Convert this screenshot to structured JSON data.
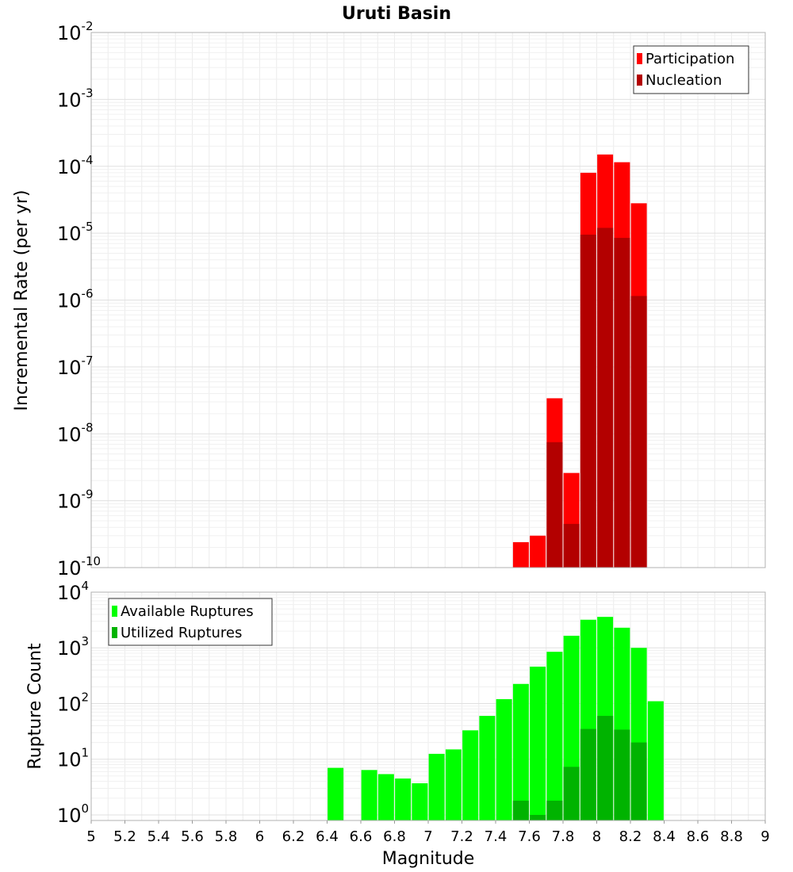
{
  "chart_data": {
    "title": "Uruti Basin",
    "xlabel": "Magnitude",
    "xlim": [
      5,
      9
    ],
    "x_ticks": [
      "5",
      "5.2",
      "5.4",
      "5.6",
      "5.8",
      "6",
      "6.2",
      "6.4",
      "6.6",
      "6.8",
      "7",
      "7.2",
      "7.4",
      "7.6",
      "7.8",
      "8",
      "8.2",
      "8.4",
      "8.6",
      "8.8",
      "9"
    ],
    "grid": true,
    "panels": [
      {
        "type": "bar",
        "scale": "log",
        "ylabel": "Incremental Rate (per yr)",
        "ylim_exp": [
          -10,
          -2
        ],
        "y_tick_base": "10",
        "y_tick_exponents": [
          "-10",
          "-9",
          "-8",
          "-7",
          "-6",
          "-5",
          "-4",
          "-3",
          "-2"
        ],
        "legend_position": "top-right",
        "series": [
          {
            "name": "Participation",
            "color": "#ff0000",
            "x": [
              7.55,
              7.65,
              7.75,
              7.85,
              7.95,
              8.05,
              8.15,
              8.25
            ],
            "values": [
              2.4e-10,
              3e-10,
              3.4e-08,
              2.6e-09,
              8e-05,
              0.00015,
              0.000115,
              2.8e-05
            ]
          },
          {
            "name": "Nucleation",
            "color": "#b30000",
            "x": [
              7.75,
              7.85,
              7.95,
              8.05,
              8.15,
              8.25
            ],
            "values": [
              7.5e-09,
              4.5e-10,
              9.5e-06,
              1.2e-05,
              8.5e-06,
              1.15e-06
            ]
          }
        ]
      },
      {
        "type": "bar",
        "scale": "log",
        "ylabel": "Rupture Count",
        "ylim_exp": [
          -0.1,
          4
        ],
        "y_tick_base": "10",
        "y_tick_exponents": [
          "0",
          "1",
          "2",
          "3",
          "4"
        ],
        "legend_position": "top-left",
        "series": [
          {
            "name": "Available Ruptures",
            "color": "#00ff00",
            "x": [
              6.45,
              6.65,
              6.75,
              6.85,
              6.95,
              7.05,
              7.15,
              7.25,
              7.35,
              7.45,
              7.55,
              7.65,
              7.75,
              7.85,
              7.95,
              8.05,
              8.15,
              8.25,
              8.35
            ],
            "values": [
              7,
              6.4,
              5.4,
              4.5,
              3.7,
              12.5,
              15,
              33,
              60,
              120,
              225,
              460,
              850,
              1650,
              3200,
              3600,
              2300,
              1000,
              110
            ]
          },
          {
            "name": "Utilized Ruptures",
            "color": "#00b300",
            "x": [
              7.55,
              7.65,
              7.75,
              7.85,
              7.95,
              8.05,
              8.15,
              8.25
            ],
            "values": [
              1.8,
              1.0,
              1.8,
              7.3,
              35,
              60,
              34,
              20
            ]
          }
        ]
      }
    ]
  }
}
